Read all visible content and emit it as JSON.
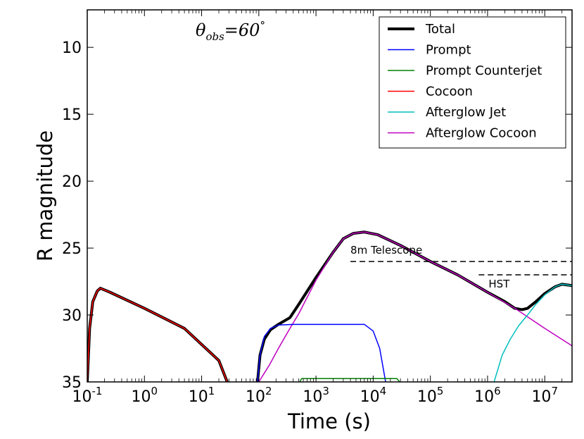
{
  "chart_data": {
    "type": "line",
    "title": "θ_obs = 60°",
    "title_parts": {
      "var": "θ",
      "sub": "obs",
      "value": "=60",
      "deg": "°"
    },
    "xlabel": "Time (s)",
    "ylabel": "R magnitude",
    "xscale": "log",
    "xlim": [
      0.1,
      30000000
    ],
    "ylim": [
      35,
      7.2
    ],
    "y_inverted": true,
    "x_ticks": [
      {
        "value": 0.1,
        "base": "10",
        "exp": "-1"
      },
      {
        "value": 1,
        "base": "10",
        "exp": "0"
      },
      {
        "value": 10,
        "base": "10",
        "exp": "1"
      },
      {
        "value": 100,
        "base": "10",
        "exp": "2"
      },
      {
        "value": 1000,
        "base": "10",
        "exp": "3"
      },
      {
        "value": 10000,
        "base": "10",
        "exp": "4"
      },
      {
        "value": 100000,
        "base": "10",
        "exp": "5"
      },
      {
        "value": 1000000,
        "base": "10",
        "exp": "6"
      },
      {
        "value": 10000000,
        "base": "10",
        "exp": "7"
      }
    ],
    "y_ticks": [
      10,
      15,
      20,
      25,
      30,
      35
    ],
    "legend_position": "top-right",
    "series": [
      {
        "name": "Total",
        "color": "#000000",
        "width": 4,
        "segments": [
          [
            [
              0.1,
              35
            ],
            [
              0.11,
              31
            ],
            [
              0.125,
              29
            ],
            [
              0.15,
              28.2
            ],
            [
              0.17,
              28.0
            ],
            [
              0.25,
              28.3
            ],
            [
              1,
              29.5
            ],
            [
              5,
              31.0
            ],
            [
              20,
              33.4
            ],
            [
              28,
              35
            ]
          ],
          [
            [
              95,
              35
            ],
            [
              105,
              33
            ],
            [
              125,
              31.8
            ],
            [
              160,
              31.1
            ],
            [
              220,
              30.7
            ],
            [
              350,
              30.2
            ],
            [
              500,
              29.2
            ],
            [
              1000,
              27.2
            ],
            [
              2000,
              25.3
            ],
            [
              3000,
              24.3
            ],
            [
              4500,
              23.9
            ],
            [
              7000,
              23.8
            ],
            [
              12000,
              24.0
            ],
            [
              30000,
              24.8
            ],
            [
              100000,
              26.0
            ],
            [
              300000,
              27.0
            ],
            [
              1000000,
              28.3
            ],
            [
              2000000,
              29.0
            ],
            [
              3000000,
              29.5
            ],
            [
              4000000,
              29.6
            ],
            [
              5000000,
              29.5
            ],
            [
              7000000,
              29.0
            ],
            [
              10000000,
              28.4
            ],
            [
              15000000,
              27.9
            ],
            [
              20000000,
              27.7
            ],
            [
              30000000,
              27.8
            ]
          ]
        ]
      },
      {
        "name": "Prompt",
        "color": "#0000ff",
        "width": 1.5,
        "segments": [
          [
            [
              95,
              35
            ],
            [
              105,
              33
            ],
            [
              125,
              31.6
            ],
            [
              160,
              31.0
            ],
            [
              220,
              30.75
            ],
            [
              400,
              30.7
            ],
            [
              2000,
              30.7
            ],
            [
              7000,
              30.7
            ],
            [
              10000,
              31.2
            ],
            [
              13000,
              32.5
            ],
            [
              15000,
              34
            ],
            [
              16500,
              35
            ]
          ]
        ]
      },
      {
        "name": "Prompt Counterjet",
        "color": "#008000",
        "width": 1.5,
        "segments": [
          [
            [
              520,
              35
            ],
            [
              560,
              34.75
            ],
            [
              5000,
              34.75
            ],
            [
              26000,
              34.75
            ],
            [
              29000,
              35
            ]
          ]
        ]
      },
      {
        "name": "Cocoon",
        "color": "#ff0000",
        "width": 1.5,
        "segments": [
          [
            [
              0.1,
              35
            ],
            [
              0.11,
              31
            ],
            [
              0.125,
              29
            ],
            [
              0.15,
              28.2
            ],
            [
              0.17,
              28.0
            ],
            [
              0.25,
              28.3
            ],
            [
              1,
              29.5
            ],
            [
              5,
              31.0
            ],
            [
              20,
              33.4
            ],
            [
              28,
              35
            ]
          ]
        ]
      },
      {
        "name": "Afterglow Jet",
        "color": "#00bfbf",
        "width": 1.5,
        "segments": [
          [
            [
              1300000,
              35
            ],
            [
              1800000,
              33
            ],
            [
              2500000,
              31.8
            ],
            [
              3500000,
              30.8
            ],
            [
              5000000,
              30.0
            ],
            [
              7000000,
              29.2
            ],
            [
              10000000,
              28.5
            ],
            [
              15000000,
              27.9
            ],
            [
              20000000,
              27.7
            ],
            [
              30000000,
              27.8
            ]
          ]
        ]
      },
      {
        "name": "Afterglow Cocoon",
        "color": "#bf00bf",
        "width": 1.5,
        "segments": [
          [
            [
              100,
              35
            ],
            [
              150,
              33.8
            ],
            [
              220,
              32.5
            ],
            [
              350,
              31.0
            ],
            [
              500,
              29.9
            ],
            [
              1000,
              27.4
            ],
            [
              2000,
              25.3
            ],
            [
              3000,
              24.3
            ],
            [
              4500,
              23.9
            ],
            [
              7000,
              23.8
            ],
            [
              12000,
              24.0
            ],
            [
              30000,
              24.8
            ],
            [
              100000,
              26.0
            ],
            [
              300000,
              27.0
            ],
            [
              1000000,
              28.3
            ],
            [
              3000000,
              29.5
            ],
            [
              10000000,
              31.0
            ],
            [
              30000000,
              32.3
            ]
          ]
        ]
      }
    ],
    "annotations": [
      {
        "label": "8m Telescope",
        "magnitude": 26.0,
        "x_start": 4000,
        "x_end": 30000000
      },
      {
        "label": "HST",
        "magnitude": 27.0,
        "x_start": 700000,
        "x_end": 30000000
      }
    ]
  }
}
